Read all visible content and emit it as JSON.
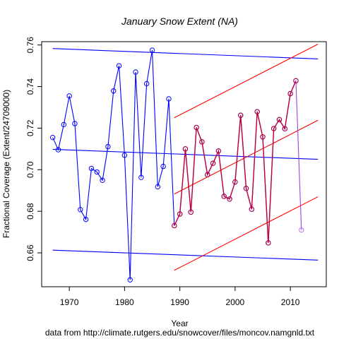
{
  "chart_data": {
    "type": "line",
    "title": "January Snow Extent (NA)",
    "xlabel": "Year",
    "ylabel": "Fractional Coverage (Extent/24709000)",
    "source_note": "data from http://climate.rutgers.edu/snowcover/files/moncov.namgnld.txt",
    "xlim": [
      1965,
      2016.5
    ],
    "ylim": [
      0.6437,
      0.7616
    ],
    "x_ticks": [
      1970,
      1980,
      1990,
      2000,
      2010
    ],
    "y_ticks": [
      0.66,
      0.68,
      0.7,
      0.72,
      0.74,
      0.76
    ],
    "colors": {
      "full_series": "#0000ff",
      "recent_series": "#c0003a",
      "last_segment": "#a040e0",
      "last_point": "#c070f0",
      "full_trend": "#0000ff",
      "recent_trend": "#ff0000"
    },
    "series": [
      {
        "style": "line-with-open-circles",
        "color": "#0000ff",
        "x": [
          1967,
          1968,
          1969,
          1970,
          1971,
          1972,
          1973,
          1974,
          1975,
          1976,
          1977,
          1978,
          1979,
          1980,
          1981,
          1982,
          1983,
          1984,
          1985,
          1986,
          1987,
          1988,
          1989,
          1990,
          1991,
          1992,
          1993,
          1994,
          1995,
          1996,
          1997,
          1998,
          1999,
          2000,
          2001,
          2002,
          2003,
          2004,
          2005,
          2006,
          2007,
          2008,
          2009,
          2010,
          2011
        ],
        "y": [
          0.7155,
          0.7096,
          0.7217,
          0.7355,
          0.7222,
          0.6808,
          0.6761,
          0.7006,
          0.6989,
          0.6949,
          0.7111,
          0.7379,
          0.75,
          0.707,
          0.647,
          0.747,
          0.6963,
          0.7414,
          0.7575,
          0.6918,
          0.7016,
          0.7341,
          0.6731,
          0.6787,
          0.71,
          0.6796,
          0.7203,
          0.7134,
          0.6976,
          0.7031,
          0.709,
          0.6872,
          0.6859,
          0.6941,
          0.7262,
          0.691,
          0.681,
          0.7279,
          0.7158,
          0.6648,
          0.7198,
          0.7241,
          0.7197,
          0.7366,
          0.7428
        ]
      },
      {
        "style": "line-with-open-circles",
        "color": "#c0003a",
        "x": [
          1989,
          1990,
          1991,
          1992,
          1993,
          1994,
          1995,
          1996,
          1997,
          1998,
          1999,
          2000,
          2001,
          2002,
          2003,
          2004,
          2005,
          2006,
          2007,
          2008,
          2009,
          2010,
          2011
        ],
        "y": [
          0.6731,
          0.6787,
          0.71,
          0.6796,
          0.7203,
          0.7134,
          0.6976,
          0.7031,
          0.709,
          0.6872,
          0.6859,
          0.6941,
          0.7262,
          0.691,
          0.681,
          0.7279,
          0.7158,
          0.6648,
          0.7198,
          0.7241,
          0.7197,
          0.7366,
          0.7428
        ]
      },
      {
        "style": "line-with-open-circles",
        "color": "#a040e0",
        "x": [
          2011,
          2012
        ],
        "y": [
          0.7428,
          0.671
        ]
      }
    ],
    "trend_lines": [
      {
        "color": "#0000ff",
        "x": [
          1967,
          2015
        ],
        "y": [
          0.7583,
          0.7533
        ]
      },
      {
        "color": "#0000ff",
        "x": [
          1967,
          2015
        ],
        "y": [
          0.7098,
          0.705
        ]
      },
      {
        "color": "#0000ff",
        "x": [
          1967,
          2015
        ],
        "y": [
          0.6613,
          0.6565
        ]
      },
      {
        "color": "#ff0000",
        "x": [
          1989,
          2015
        ],
        "y": [
          0.725,
          0.7604
        ]
      },
      {
        "color": "#ff0000",
        "x": [
          1989,
          2015
        ],
        "y": [
          0.6883,
          0.7238
        ]
      },
      {
        "color": "#ff0000",
        "x": [
          1989,
          2015
        ],
        "y": [
          0.6516,
          0.687
        ]
      }
    ]
  }
}
